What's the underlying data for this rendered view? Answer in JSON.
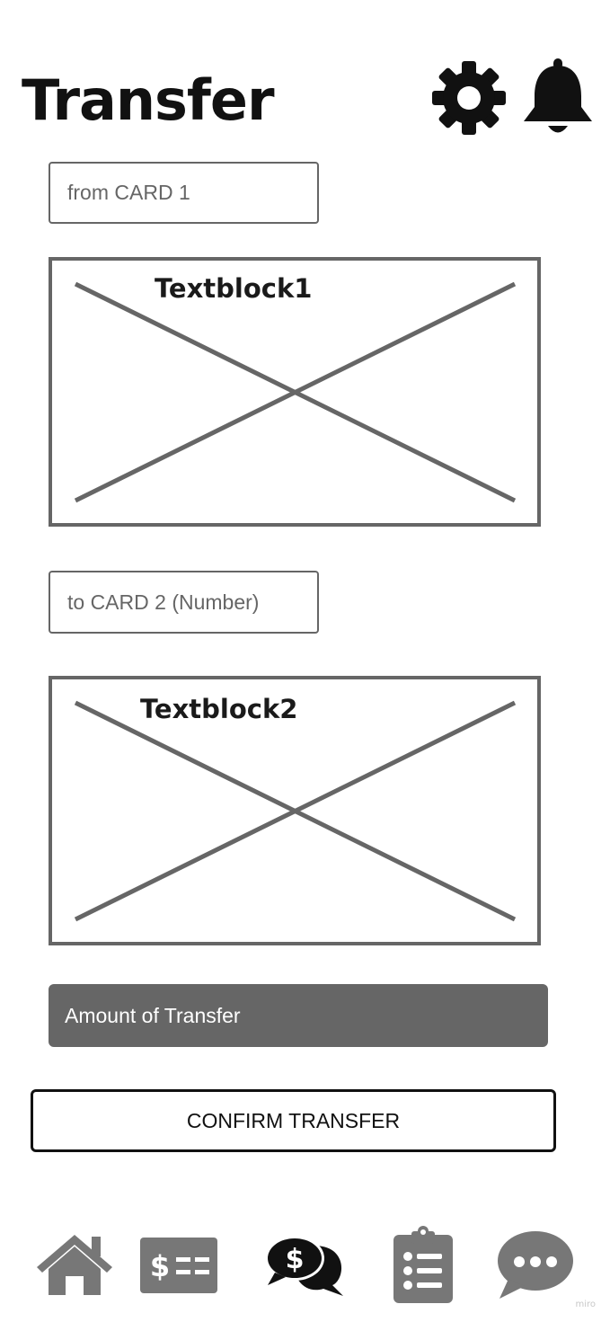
{
  "header": {
    "title": "Transfer",
    "icons": [
      "gear-icon",
      "bell-icon"
    ]
  },
  "form": {
    "from_card": {
      "placeholder": "from CARD 1"
    },
    "block1": {
      "label": "Textblock1"
    },
    "to_card": {
      "placeholder": "to CARD 2 (Number)"
    },
    "block2": {
      "label": "Textblock2"
    },
    "amount": {
      "placeholder": "Amount of Transfer"
    },
    "confirm_label": "CONFIRM TRANSFER"
  },
  "bottom_nav": {
    "items": [
      {
        "icon": "home-icon"
      },
      {
        "icon": "bill-icon"
      },
      {
        "icon": "money-chat-icon"
      },
      {
        "icon": "clipboard-list-icon"
      },
      {
        "icon": "chat-bubble-icon"
      }
    ]
  },
  "watermark": "miro",
  "colors": {
    "text": "#111111",
    "border_gray": "#666666",
    "icon_gray": "#777777",
    "background": "#ffffff"
  }
}
